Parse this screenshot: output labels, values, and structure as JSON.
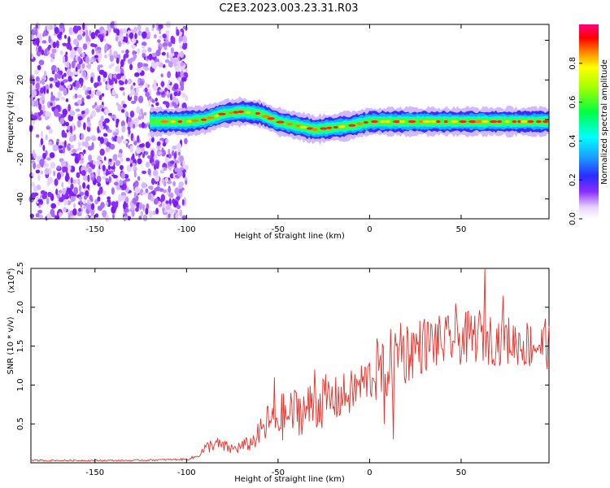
{
  "figure_title": "C2E3.2023.003.23.31.R03",
  "chart_data": [
    {
      "type": "heatmap",
      "title": "C2E3.2023.003.23.31.R03",
      "xlabel": "Height of straight line (km)",
      "ylabel": "Frequency (Hz)",
      "xlim": [
        -185,
        98
      ],
      "ylim": [
        -50,
        48
      ],
      "xticks": [
        -150,
        -100,
        -50,
        0,
        50
      ],
      "xtick_labels": [
        "-150",
        "-100",
        "-50",
        "0",
        "50"
      ],
      "yticks": [
        -40,
        -20,
        0,
        20,
        40
      ],
      "ytick_labels": [
        "-40",
        "-20",
        "0",
        "20",
        "40"
      ],
      "noise_region_x": [
        -185,
        -100
      ],
      "ridge": {
        "x": [
          -120,
          -110,
          -100,
          -90,
          -80,
          -70,
          -60,
          -50,
          -40,
          -30,
          -20,
          -10,
          0,
          10,
          20,
          30,
          40,
          50,
          60,
          70,
          80,
          90,
          98
        ],
        "freq": [
          -1,
          -1,
          -1,
          0,
          3,
          4,
          3,
          -1,
          -3,
          -5,
          -4,
          -3,
          -1,
          -1,
          -1,
          -1,
          -1,
          -1,
          -1,
          -1,
          -1,
          -1,
          -1
        ]
      },
      "colorbar": {
        "label": "Normalized spectral amplitude",
        "range": [
          0.0,
          1.0
        ],
        "ticks": [
          0.0,
          0.2,
          0.4,
          0.6,
          0.8
        ],
        "tick_labels": [
          "0.0",
          "0.2",
          "0.4",
          "0.6",
          "0.8"
        ],
        "colormap": "rainbow (white-violet-blue-cyan-green-yellow-red-magenta)"
      }
    },
    {
      "type": "line",
      "xlabel": "Height of straight line (km)",
      "ylabel": "SNR (10 * v/v)",
      "scale_label": "(x10",
      "scale_exponent": "4",
      "scale_close": ")",
      "xlim": [
        -185,
        98
      ],
      "ylim": [
        0,
        2.5
      ],
      "xticks": [
        -150,
        -100,
        -50,
        0,
        50
      ],
      "xtick_labels": [
        "-150",
        "-100",
        "-50",
        "0",
        "50"
      ],
      "yticks": [
        0.5,
        1.0,
        1.5,
        2.0,
        2.5
      ],
      "ytick_labels": [
        "0.5",
        "1.0",
        "1.5",
        "2.0",
        "2.5"
      ],
      "line_color": "#e8302a",
      "series": [
        {
          "name": "SNR",
          "x": [
            -185,
            -170,
            -150,
            -130,
            -110,
            -100,
            -95,
            -90,
            -85,
            -80,
            -75,
            -70,
            -65,
            -60,
            -55,
            -50,
            -45,
            -40,
            -35,
            -30,
            -25,
            -20,
            -15,
            -10,
            -5,
            0,
            5,
            10,
            15,
            20,
            25,
            30,
            35,
            40,
            45,
            50,
            55,
            60,
            65,
            70,
            75,
            80,
            85,
            90,
            98
          ],
          "envelope_low": [
            0.02,
            0.02,
            0.02,
            0.02,
            0.03,
            0.03,
            0.05,
            0.1,
            0.15,
            0.12,
            0.1,
            0.12,
            0.15,
            0.2,
            0.25,
            0.25,
            0.3,
            0.35,
            0.35,
            0.4,
            0.45,
            0.5,
            0.55,
            0.6,
            0.7,
            0.8,
            0.75,
            0.8,
            0.9,
            1.0,
            1.1,
            1.15,
            1.2,
            1.2,
            1.25,
            1.25,
            1.25,
            1.3,
            1.25,
            1.25,
            1.25,
            1.25,
            1.2,
            1.2,
            1.2
          ],
          "envelope_high": [
            0.04,
            0.04,
            0.04,
            0.04,
            0.05,
            0.06,
            0.1,
            0.25,
            0.35,
            0.3,
            0.25,
            0.3,
            0.35,
            0.55,
            0.8,
            0.9,
            0.9,
            1.0,
            1.0,
            1.1,
            1.15,
            1.1,
            1.15,
            1.2,
            1.3,
            1.4,
            1.55,
            1.7,
            1.8,
            1.85,
            1.85,
            1.9,
            1.9,
            1.9,
            1.9,
            1.95,
            1.95,
            2.0,
            1.95,
            1.9,
            1.9,
            1.85,
            1.85,
            1.85,
            1.8
          ],
          "peaks": [
            {
              "x": -52,
              "y": 1.1
            },
            {
              "x": -30,
              "y": 1.2
            },
            {
              "x": 4,
              "y": 1.6
            },
            {
              "x": 17,
              "y": 1.8
            },
            {
              "x": 47,
              "y": 2.05
            },
            {
              "x": 63,
              "y": 2.5
            },
            {
              "x": 73,
              "y": 2.15
            },
            {
              "x": 96,
              "y": 1.85
            }
          ],
          "dips": [
            {
              "x": 13,
              "y": 0.3
            },
            {
              "x": 8,
              "y": 0.5
            }
          ]
        }
      ]
    }
  ]
}
